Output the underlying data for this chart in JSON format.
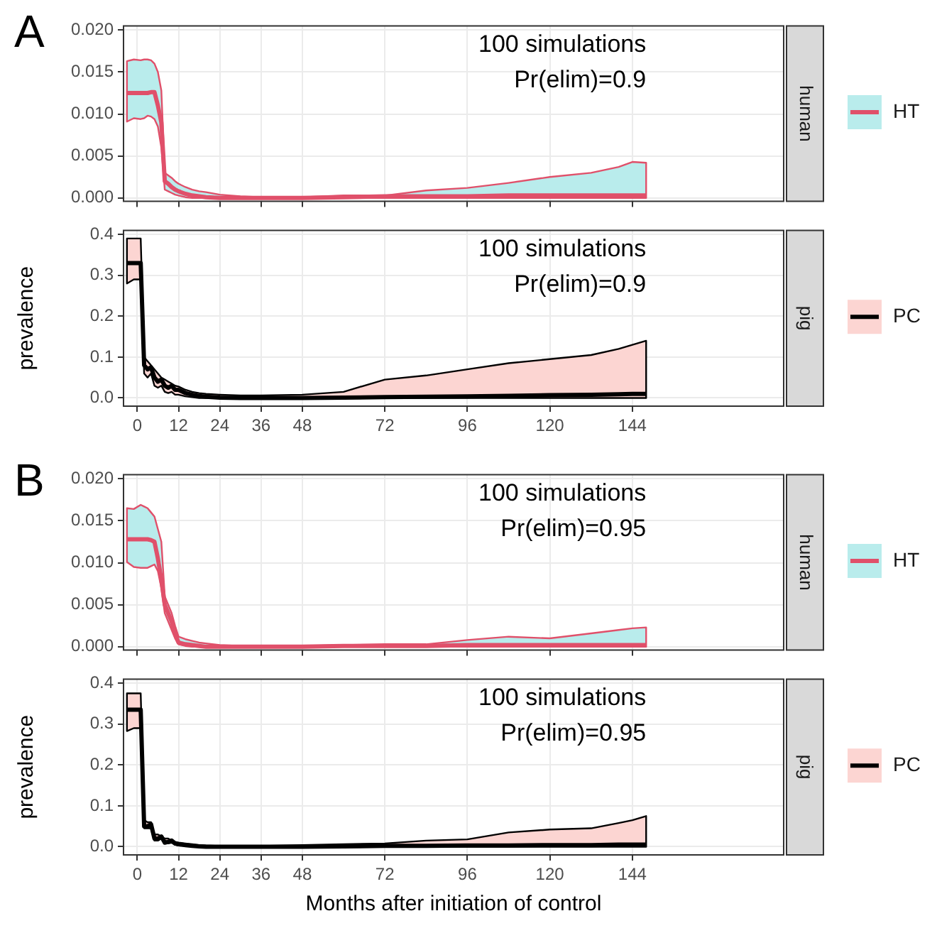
{
  "chart_data": [
    {
      "type": "line",
      "title": "A",
      "y2label": "human",
      "tick_labels": "y",
      "grid": true,
      "legend": "right",
      "annotations": [
        "100 simulations",
        "Pr(elim)=0.9"
      ],
      "x": [
        -3,
        -1,
        1,
        2,
        3,
        4,
        5,
        6,
        7,
        8,
        9,
        10,
        11,
        12,
        14,
        16,
        18,
        20,
        24,
        30,
        36,
        48,
        60,
        72,
        84,
        96,
        108,
        120,
        132,
        140,
        144,
        148
      ],
      "xlim": [
        -4,
        188
      ],
      "xticks": [
        0,
        12,
        24,
        36,
        48,
        72,
        96,
        120,
        144
      ],
      "ylim": [
        -0.0004,
        0.0205
      ],
      "yticks": [
        {
          "value": 0,
          "label": "0.000"
        },
        {
          "value": 0.005,
          "label": "0.005"
        },
        {
          "value": 0.01,
          "label": "0.010"
        },
        {
          "value": 0.015,
          "label": "0.015"
        },
        {
          "value": 0.02,
          "label": "0.020"
        }
      ],
      "series": [
        {
          "name": "HT",
          "color": "#e0506a",
          "values": [
            0.0125,
            0.0125,
            0.0125,
            0.0125,
            0.0125,
            0.0126,
            0.0126,
            0.011,
            0.009,
            0.002,
            0.0017,
            0.0013,
            0.001,
            0.0008,
            0.0005,
            0.0003,
            0.0002,
            0.0001,
            0,
            0,
            0,
            0,
            0.0001,
            0.0002,
            0.0002,
            0.0002,
            0.0003,
            0.0003,
            0.0003,
            0.0003,
            0.0003,
            0.0003
          ],
          "lower": [
            0.0091,
            0.0095,
            0.0094,
            0.0095,
            0.0098,
            0.0097,
            0.0094,
            0.0085,
            0.006,
            0.001,
            0.0008,
            0.0006,
            0.0004,
            0.0003,
            0.0001,
            0,
            0,
            0,
            0,
            0,
            0,
            0,
            0,
            0,
            0,
            0,
            0,
            0,
            0,
            0,
            0,
            0
          ],
          "upper": [
            0.0163,
            0.0165,
            0.0164,
            0.0165,
            0.0165,
            0.0164,
            0.016,
            0.015,
            0.0128,
            0.003,
            0.0027,
            0.0024,
            0.002,
            0.0017,
            0.0013,
            0.001,
            0.0008,
            0.0007,
            0.0004,
            0.0002,
            0.0001,
            0.0001,
            0.0003,
            0.0003,
            0.0009,
            0.0012,
            0.0018,
            0.0025,
            0.003,
            0.0037,
            0.0043,
            0.0042
          ]
        }
      ]
    },
    {
      "type": "line",
      "ylabel": "prevalence",
      "y2label": "pig",
      "grid": true,
      "legend": "right",
      "annotations": [
        "100 simulations",
        "Pr(elim)=0.9"
      ],
      "x": [
        -3,
        -1,
        1,
        2,
        3,
        4,
        5,
        6,
        7,
        8,
        9,
        10,
        11,
        12,
        14,
        16,
        18,
        20,
        24,
        30,
        36,
        48,
        60,
        72,
        84,
        96,
        108,
        120,
        132,
        140,
        144,
        148
      ],
      "xlim": [
        -4,
        188
      ],
      "xticks": [
        0,
        12,
        24,
        36,
        48,
        72,
        96,
        120,
        144
      ],
      "ylim": [
        -0.02,
        0.41
      ],
      "yticks": [
        {
          "value": 0,
          "label": "0.0"
        },
        {
          "value": 0.1,
          "label": "0.1"
        },
        {
          "value": 0.2,
          "label": "0.2"
        },
        {
          "value": 0.3,
          "label": "0.3"
        },
        {
          "value": 0.4,
          "label": "0.4"
        }
      ],
      "series": [
        {
          "name": "PC",
          "color": "#000000",
          "values": [
            0.33,
            0.33,
            0.33,
            0.08,
            0.07,
            0.075,
            0.05,
            0.04,
            0.045,
            0.03,
            0.025,
            0.03,
            0.02,
            0.02,
            0.012,
            0.008,
            0.005,
            0.003,
            0.001,
            0,
            0,
            0,
            0.001,
            0.002,
            0.003,
            0.004,
            0.005,
            0.007,
            0.008,
            0.009,
            0.01,
            0.01
          ],
          "lower": [
            0.28,
            0.29,
            0.29,
            0.06,
            0.05,
            0.06,
            0.03,
            0.025,
            0.03,
            0.015,
            0.012,
            0.015,
            0.008,
            0.008,
            0.004,
            0.002,
            0,
            0,
            0,
            0,
            0,
            0,
            0,
            0,
            0,
            0,
            0,
            0,
            0,
            0,
            0,
            0
          ],
          "upper": [
            0.39,
            0.39,
            0.39,
            0.1,
            0.09,
            0.08,
            0.07,
            0.06,
            0.05,
            0.045,
            0.04,
            0.035,
            0.03,
            0.028,
            0.02,
            0.015,
            0.012,
            0.01,
            0.008,
            0.006,
            0.006,
            0.008,
            0.015,
            0.045,
            0.055,
            0.07,
            0.085,
            0.095,
            0.105,
            0.12,
            0.13,
            0.14
          ]
        }
      ]
    },
    {
      "type": "line",
      "title": "B",
      "y2label": "human",
      "tick_labels": "y",
      "grid": true,
      "legend": "right",
      "annotations": [
        "100 simulations",
        "Pr(elim)=0.95"
      ],
      "x": [
        -3,
        -1,
        1,
        2,
        3,
        4,
        5,
        6,
        7,
        8,
        9,
        10,
        11,
        12,
        14,
        16,
        18,
        20,
        24,
        30,
        36,
        48,
        60,
        72,
        84,
        96,
        108,
        120,
        132,
        140,
        144,
        148
      ],
      "xlim": [
        -4,
        188
      ],
      "xticks": [
        0,
        12,
        24,
        36,
        48,
        72,
        96,
        120,
        144
      ],
      "ylim": [
        -0.0004,
        0.0205
      ],
      "yticks": [
        {
          "value": 0,
          "label": "0.000"
        },
        {
          "value": 0.005,
          "label": "0.005"
        },
        {
          "value": 0.01,
          "label": "0.010"
        },
        {
          "value": 0.015,
          "label": "0.015"
        },
        {
          "value": 0.02,
          "label": "0.020"
        }
      ],
      "series": [
        {
          "name": "HT",
          "color": "#e0506a",
          "values": [
            0.0128,
            0.0128,
            0.0128,
            0.0128,
            0.0128,
            0.0127,
            0.0125,
            0.0105,
            0.008,
            0.005,
            0.004,
            0.003,
            0.0015,
            0.0005,
            0.0003,
            0.0002,
            0.0001,
            0,
            0,
            0,
            0,
            0,
            0.0001,
            0.0001,
            0.0001,
            0.0002,
            0.0002,
            0.0002,
            0.0002,
            0.0002,
            0.0002,
            0.0002
          ],
          "lower": [
            0.0101,
            0.0095,
            0.0094,
            0.0094,
            0.0094,
            0.0096,
            0.0098,
            0.009,
            0.007,
            0.004,
            0.003,
            0.002,
            0.001,
            0.0003,
            0.0001,
            0,
            0,
            0,
            0,
            0,
            0,
            0,
            0,
            0,
            0,
            0,
            0,
            0,
            0,
            0,
            0,
            0
          ],
          "upper": [
            0.0165,
            0.0164,
            0.0169,
            0.0167,
            0.0165,
            0.016,
            0.0155,
            0.014,
            0.0125,
            0.006,
            0.005,
            0.004,
            0.0025,
            0.0012,
            0.0009,
            0.0007,
            0.0005,
            0.0004,
            0.0002,
            0.0001,
            0.0001,
            0.0001,
            0.0002,
            0.0003,
            0.0003,
            0.0008,
            0.0012,
            0.001,
            0.0016,
            0.002,
            0.0022,
            0.0023
          ]
        }
      ]
    },
    {
      "type": "line",
      "ylabel": "prevalence",
      "xlabel": "Months after initiation of control",
      "y2label": "pig",
      "grid": true,
      "legend": "right",
      "annotations": [
        "100 simulations",
        "Pr(elim)=0.95"
      ],
      "x": [
        -3,
        -1,
        1,
        2,
        3,
        4,
        5,
        6,
        7,
        8,
        9,
        10,
        11,
        12,
        14,
        16,
        18,
        20,
        24,
        30,
        36,
        48,
        60,
        72,
        84,
        96,
        108,
        120,
        132,
        140,
        144,
        148
      ],
      "xlim": [
        -4,
        188
      ],
      "xticks": [
        0,
        12,
        24,
        36,
        48,
        72,
        96,
        120,
        144
      ],
      "ylim": [
        -0.02,
        0.41
      ],
      "yticks": [
        {
          "value": 0,
          "label": "0.0"
        },
        {
          "value": 0.1,
          "label": "0.1"
        },
        {
          "value": 0.2,
          "label": "0.2"
        },
        {
          "value": 0.3,
          "label": "0.3"
        },
        {
          "value": 0.4,
          "label": "0.4"
        }
      ],
      "series": [
        {
          "name": "PC",
          "color": "#000000",
          "values": [
            0.335,
            0.335,
            0.335,
            0.05,
            0.05,
            0.055,
            0.02,
            0.02,
            0.025,
            0.01,
            0.012,
            0.015,
            0.008,
            0.006,
            0.004,
            0.002,
            0.001,
            0,
            0,
            0,
            0,
            0,
            0.001,
            0.002,
            0.002,
            0.003,
            0.003,
            0.004,
            0.004,
            0.005,
            0.005,
            0.005
          ],
          "lower": [
            0.283,
            0.29,
            0.29,
            0.045,
            0.045,
            0.045,
            0.015,
            0.015,
            0.02,
            0.008,
            0.008,
            0.01,
            0.005,
            0.003,
            0.002,
            0.001,
            0,
            0,
            0,
            0,
            0,
            0,
            0,
            0,
            0,
            0,
            0,
            0,
            0,
            0,
            0,
            0
          ],
          "upper": [
            0.375,
            0.375,
            0.375,
            0.065,
            0.06,
            0.06,
            0.03,
            0.03,
            0.025,
            0.02,
            0.02,
            0.015,
            0.012,
            0.01,
            0.008,
            0.006,
            0.004,
            0.003,
            0.002,
            0.002,
            0.002,
            0.004,
            0.006,
            0.008,
            0.015,
            0.018,
            0.035,
            0.042,
            0.045,
            0.058,
            0.065,
            0.075
          ]
        }
      ]
    }
  ]
}
